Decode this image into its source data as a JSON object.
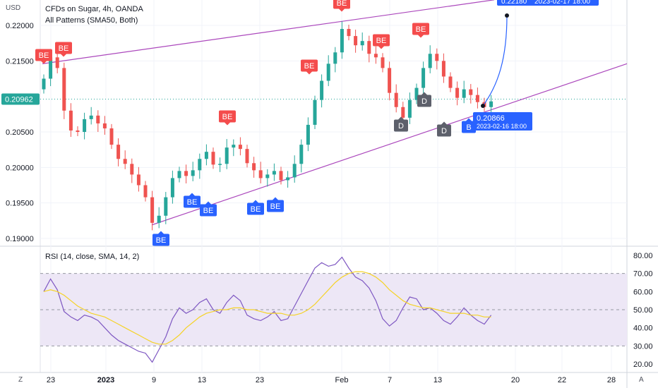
{
  "header": {
    "currency": "USD",
    "symbol_line": "CFDs on Sugar, 4h, OANDA",
    "indicator_line": "All Patterns (SMA50, Both)",
    "rsi_line": "RSI (14, close, SMA, 14, 2)"
  },
  "corners": {
    "left": "Z",
    "right": "A"
  },
  "colors": {
    "bull": "#26a69a",
    "bear": "#ef5350",
    "trendline": "#ab47bc",
    "rsi": "#7e57c2",
    "rsi_ma": "#f5d327",
    "rsi_band": "#ede7f6",
    "badge_red": "#f44c4c",
    "badge_blue": "#2962ff",
    "badge_gray": "#5d606b",
    "price_tag": "#26a69a"
  },
  "chart_data": [
    {
      "type": "candlestick",
      "title": "CFDs on Sugar, 4h, OANDA",
      "ylabel": "USD",
      "ylim": [
        0.189,
        0.2215
      ],
      "yticks": [
        "0.19000",
        "0.19500",
        "0.20000",
        "0.20500",
        "0.21500",
        "0.22000"
      ],
      "xticks": [
        "23",
        "2023",
        "9",
        "13",
        "23",
        "Feb",
        "7",
        "13",
        "20",
        "22",
        "28"
      ],
      "last_price": "0.20962",
      "close_trend": [
        0.2125,
        0.2155,
        0.214,
        0.208,
        0.2052,
        0.205,
        0.2068,
        0.2073,
        0.2062,
        0.2055,
        0.2032,
        0.2012,
        0.2005,
        0.199,
        0.1975,
        0.1958,
        0.1922,
        0.1932,
        0.1958,
        0.1985,
        0.1995,
        0.1988,
        0.1996,
        0.2012,
        0.2022,
        0.2004,
        0.2005,
        0.2028,
        0.2032,
        0.2026,
        0.2006,
        0.1996,
        0.1985,
        0.199,
        0.1995,
        0.1982,
        0.1986,
        0.2005,
        0.2032,
        0.206,
        0.2095,
        0.2122,
        0.2146,
        0.2162,
        0.2195,
        0.2185,
        0.2172,
        0.2178,
        0.216,
        0.2155,
        0.214,
        0.2105,
        0.2085,
        0.207,
        0.2095,
        0.2112,
        0.214,
        0.216,
        0.215,
        0.2128,
        0.2112,
        0.2098,
        0.211,
        0.2102,
        0.2092,
        0.2085,
        0.2093
      ],
      "annotations": [
        {
          "text": "BE",
          "kind": "bearish",
          "x": "Dec 20",
          "price": 0.2155
        },
        {
          "text": "BE",
          "kind": "bearish",
          "x": "Dec 21",
          "price": 0.2162
        },
        {
          "text": "BE",
          "kind": "bearish",
          "x": "Jan 17",
          "price": 0.2048
        },
        {
          "text": "BE",
          "kind": "bearish",
          "x": "Jan 27",
          "price": 0.213
        },
        {
          "text": "BE",
          "kind": "bearish",
          "x": "Feb 1",
          "price": 0.2215
        },
        {
          "text": "BE",
          "kind": "bearish",
          "x": "Feb 4",
          "price": 0.2175
        },
        {
          "text": "BE",
          "kind": "bearish",
          "x": "Feb 9",
          "price": 0.219
        },
        {
          "text": "BE",
          "kind": "bullish",
          "x": "Jan 9",
          "price": 0.191
        },
        {
          "text": "BE",
          "kind": "bullish",
          "x": "Jan 12",
          "price": 0.1955
        },
        {
          "text": "BE",
          "kind": "bullish",
          "x": "Jan 14",
          "price": 0.195
        },
        {
          "text": "BE",
          "kind": "bullish",
          "x": "Jan 20",
          "price": 0.1951
        },
        {
          "text": "BE",
          "kind": "bullish",
          "x": "Jan 22",
          "price": 0.1953
        },
        {
          "text": "B",
          "kind": "bullish",
          "x": "Feb 16",
          "price": 0.2057
        },
        {
          "text": "D",
          "kind": "neutral",
          "x": "Feb 7",
          "price": 0.2062
        },
        {
          "text": "D",
          "kind": "neutral",
          "x": "Feb 10",
          "price": 0.2094
        },
        {
          "text": "D",
          "kind": "neutral",
          "x": "Feb 12",
          "price": 0.205
        }
      ],
      "forecast": {
        "price": "0.22180",
        "date": "2023-02-17 18:00",
        "start_price": "0.20866",
        "start_date": "2023-02-16 18:00"
      }
    },
    {
      "type": "line",
      "title": "RSI (14, close, SMA, 14, 2)",
      "ylim": [
        18,
        83
      ],
      "yticks": [
        "20.00",
        "30.00",
        "40.00",
        "50.00",
        "60.00",
        "70.00",
        "80.00"
      ],
      "bands": [
        30,
        50,
        70
      ],
      "series": [
        {
          "values": [
            60,
            67,
            61,
            49,
            46,
            44,
            47,
            46,
            44,
            40,
            36,
            33,
            31,
            29,
            27,
            26,
            21,
            28,
            35,
            45,
            51,
            48,
            50,
            54,
            56,
            50,
            48,
            54,
            58,
            55,
            47,
            45,
            44,
            46,
            49,
            44,
            45,
            52,
            59,
            66,
            73,
            76,
            74,
            75,
            79,
            73,
            68,
            66,
            62,
            55,
            45,
            41,
            44,
            51,
            57,
            56,
            50,
            51,
            48,
            44,
            42,
            46,
            51,
            47,
            44,
            42,
            47
          ]
        },
        {
          "values": [
            60,
            61,
            60,
            58,
            55,
            52,
            50,
            48,
            47,
            46,
            44,
            42,
            40,
            38,
            36,
            34,
            32,
            31,
            31,
            33,
            36,
            40,
            43,
            46,
            48,
            49,
            50,
            50,
            51,
            51,
            50,
            50,
            49,
            48,
            48,
            48,
            47,
            47,
            48,
            50,
            53,
            57,
            61,
            65,
            68,
            70,
            71,
            71,
            70,
            68,
            65,
            61,
            58,
            55,
            53,
            52,
            51,
            51,
            50,
            49,
            48,
            48,
            48,
            47,
            47,
            46,
            46
          ]
        }
      ]
    }
  ]
}
